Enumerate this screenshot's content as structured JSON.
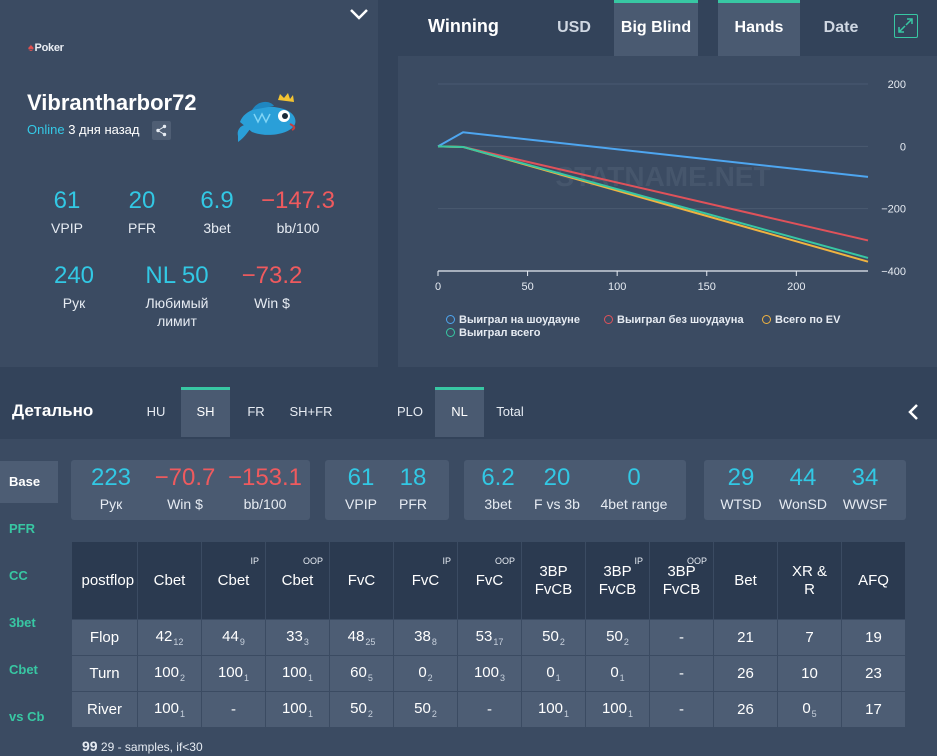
{
  "profile": {
    "logo_text": "Poker",
    "nickname": "Vibrantharbor72",
    "online_label": "Online",
    "last_seen": "3 дня назад",
    "stats": [
      {
        "value": "61",
        "label": "VPIP",
        "color": "cyan"
      },
      {
        "value": "20",
        "label": "PFR",
        "color": "cyan"
      },
      {
        "value": "6.9",
        "label": "3bet",
        "color": "cyan"
      },
      {
        "value": "−147.3",
        "label": "bb/100",
        "color": "red"
      },
      {
        "value": "240",
        "label": "Рук",
        "color": "cyan"
      },
      {
        "value": "NL 50",
        "label": "Любимый лимит",
        "color": "cyan"
      },
      {
        "value": "−73.2",
        "label": "Win $",
        "color": "red"
      }
    ]
  },
  "chart_panel": {
    "title": "Winning",
    "tabs": [
      {
        "label": "USD",
        "active": false
      },
      {
        "label": "Big Blind",
        "active": true
      },
      {
        "label": "Hands",
        "active": true
      },
      {
        "label": "Date",
        "active": false
      }
    ],
    "watermark": "STATNAME.NET"
  },
  "chart_data": {
    "type": "line",
    "x_ticks": [
      "0",
      "50",
      "100",
      "150",
      "200"
    ],
    "y_ticks": [
      "200",
      "0",
      "−200",
      "−400"
    ],
    "xlim": [
      0,
      240
    ],
    "ylim": [
      -400,
      200
    ],
    "series": [
      {
        "name": "Выиграл на шоудауне",
        "color": "#4ea6f0",
        "points": [
          [
            0,
            0
          ],
          [
            14,
            45
          ],
          [
            240,
            -98
          ]
        ]
      },
      {
        "name": "Выиграл без шоудауна",
        "color": "#e0525a",
        "points": [
          [
            0,
            0
          ],
          [
            14,
            -2
          ],
          [
            240,
            -302
          ]
        ]
      },
      {
        "name": "Всего по EV",
        "color": "#f0b340",
        "points": [
          [
            0,
            0
          ],
          [
            14,
            -2
          ],
          [
            240,
            -370
          ]
        ]
      },
      {
        "name": "Выиграл всего",
        "color": "#38c7a3",
        "points": [
          [
            0,
            0
          ],
          [
            14,
            -2
          ],
          [
            240,
            -358
          ]
        ]
      }
    ]
  },
  "detail": {
    "title": "Детально",
    "game_tabs": [
      {
        "label": "HU",
        "active": false
      },
      {
        "label": "SH",
        "active": true
      },
      {
        "label": "FR",
        "active": false
      },
      {
        "label": "SH+FR",
        "active": false
      }
    ],
    "type_tabs": [
      {
        "label": "PLO",
        "active": false
      },
      {
        "label": "NL",
        "active": true
      },
      {
        "label": "Total",
        "active": false
      }
    ],
    "side_tabs": [
      "Base",
      "PFR",
      "CC",
      "3bet",
      "Cbet",
      "vs Cb"
    ],
    "boxes": [
      [
        {
          "value": "223",
          "label": "Рук",
          "color": "cyan"
        },
        {
          "value": "−70.7",
          "label": "Win $",
          "color": "red"
        },
        {
          "value": "−153.1",
          "label": "bb/100",
          "color": "red"
        }
      ],
      [
        {
          "value": "61",
          "label": "VPIP",
          "color": "cyan"
        },
        {
          "value": "18",
          "label": "PFR",
          "color": "cyan"
        }
      ],
      [
        {
          "value": "6.2",
          "label": "3bet",
          "color": "cyan"
        },
        {
          "value": "20",
          "label": "F vs 3b",
          "color": "cyan"
        },
        {
          "value": "0",
          "label": "4bet range",
          "color": "cyan"
        }
      ],
      [
        {
          "value": "29",
          "label": "WTSD",
          "color": "cyan"
        },
        {
          "value": "44",
          "label": "WonSD",
          "color": "cyan"
        },
        {
          "value": "34",
          "label": "WWSF",
          "color": "cyan"
        }
      ]
    ],
    "postflop": {
      "headers": [
        {
          "label": "postflop",
          "pos": ""
        },
        {
          "label": "Cbet",
          "pos": ""
        },
        {
          "label": "Cbet",
          "pos": "IP"
        },
        {
          "label": "Cbet",
          "pos": "OOP"
        },
        {
          "label": "FvC",
          "pos": ""
        },
        {
          "label": "FvC",
          "pos": "IP"
        },
        {
          "label": "FvC",
          "pos": "OOP"
        },
        {
          "label": "3BP FvCB",
          "pos": ""
        },
        {
          "label": "3BP FvCB",
          "pos": "IP"
        },
        {
          "label": "3BP FvCB",
          "pos": "OOP"
        },
        {
          "label": "Bet",
          "pos": ""
        },
        {
          "label": "XR & R",
          "pos": ""
        },
        {
          "label": "AFQ",
          "pos": ""
        }
      ],
      "rows": [
        {
          "street": "Flop",
          "cells": [
            [
              "42",
              "12"
            ],
            [
              "44",
              "9"
            ],
            [
              "33",
              "3"
            ],
            [
              "48",
              "25"
            ],
            [
              "38",
              "8"
            ],
            [
              "53",
              "17"
            ],
            [
              "50",
              "2"
            ],
            [
              "50",
              "2"
            ],
            [
              "-",
              ""
            ],
            [
              "21",
              ""
            ],
            [
              "7",
              ""
            ],
            [
              "19",
              ""
            ]
          ]
        },
        {
          "street": "Turn",
          "cells": [
            [
              "100",
              "2"
            ],
            [
              "100",
              "1"
            ],
            [
              "100",
              "1"
            ],
            [
              "60",
              "5"
            ],
            [
              "0",
              "2"
            ],
            [
              "100",
              "3"
            ],
            [
              "0",
              "1"
            ],
            [
              "0",
              "1"
            ],
            [
              "-",
              ""
            ],
            [
              "26",
              ""
            ],
            [
              "10",
              ""
            ],
            [
              "23",
              ""
            ]
          ]
        },
        {
          "street": "River",
          "cells": [
            [
              "100",
              "1"
            ],
            [
              "-",
              ""
            ],
            [
              "100",
              "1"
            ],
            [
              "50",
              "2"
            ],
            [
              "50",
              "2"
            ],
            [
              "-",
              ""
            ],
            [
              "100",
              "1"
            ],
            [
              "100",
              "1"
            ],
            [
              "-",
              ""
            ],
            [
              "26",
              ""
            ],
            [
              "0",
              "5"
            ],
            [
              "17",
              ""
            ]
          ]
        }
      ]
    },
    "note_value": "99",
    "note_text": "29 - samples, if<30"
  }
}
